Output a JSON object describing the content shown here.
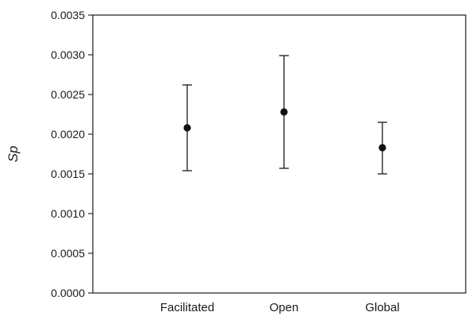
{
  "chart_data": {
    "type": "scatter",
    "title": "",
    "xlabel": "",
    "ylabel": "Sp",
    "ylim": [
      0,
      0.0035
    ],
    "grid": false,
    "legend": false,
    "categories": [
      "Facilitated",
      "Open",
      "Global"
    ],
    "yticks": [
      {
        "value": 0.0,
        "label": "0.0000"
      },
      {
        "value": 0.0005,
        "label": "0.0005"
      },
      {
        "value": 0.001,
        "label": "0.0010"
      },
      {
        "value": 0.0015,
        "label": "0.0015"
      },
      {
        "value": 0.002,
        "label": "0.0020"
      },
      {
        "value": 0.0025,
        "label": "0.0025"
      },
      {
        "value": 0.003,
        "label": "0.0030"
      },
      {
        "value": 0.0035,
        "label": "0.0035"
      }
    ],
    "points": [
      {
        "category": "Facilitated",
        "value": 0.00208,
        "lower": 0.00154,
        "upper": 0.00262
      },
      {
        "category": "Open",
        "value": 0.00228,
        "lower": 0.00157,
        "upper": 0.00299
      },
      {
        "category": "Global",
        "value": 0.00183,
        "lower": 0.0015,
        "upper": 0.00215
      }
    ]
  }
}
